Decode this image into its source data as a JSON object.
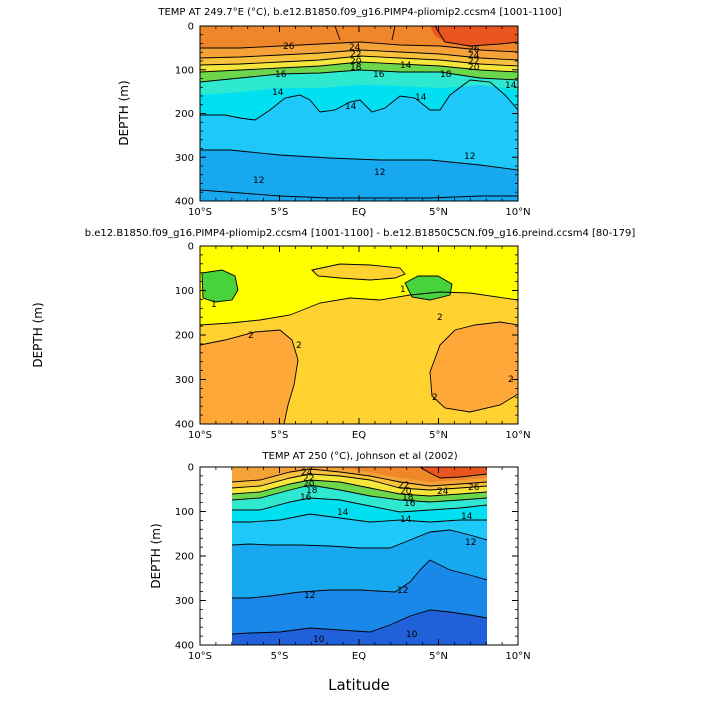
{
  "colors": {
    "t26": "#e8551e",
    "t24": "#f0862a",
    "t22": "#f5a238",
    "t20": "#f8c23c",
    "t18": "#f5e63c",
    "t16": "#6cd64c",
    "t15": "#2ee8d0",
    "t14": "#00e0f0",
    "t13": "#1ec8f8",
    "t12": "#18a8f0",
    "t11": "#1a88e8",
    "t10": "#2060d8",
    "d0": "#48d23c",
    "d1": "#ffff00",
    "d2": "#ffd230",
    "d3": "#ffa83a"
  },
  "chart_data": [
    {
      "type": "contour",
      "title": "TEMP AT 249.7°E (°C), b.e12.B1850.f09_g16.PIMP4-pliomip2.ccsm4 [1001-1100]",
      "xlabel": "",
      "ylabel": "DEPTH (m)",
      "xlim": [
        -10,
        10
      ],
      "ylim": [
        400,
        0
      ],
      "x_tick_labels": [
        "10°S",
        "5°S",
        "EQ",
        "5°N",
        "10°N"
      ],
      "y_tick_labels": [
        "0",
        "100",
        "200",
        "300",
        "400"
      ],
      "contour_labels": [
        "26",
        "24",
        "22",
        "20",
        "18",
        "16",
        "14",
        "14",
        "14",
        "14",
        "12",
        "12",
        "12",
        "26",
        "24",
        "22",
        "20",
        "18",
        "16",
        "14"
      ]
    },
    {
      "type": "contour",
      "title": "b.e12.B1850.f09_g16.PIMP4-pliomip2.ccsm4 [1001-1100] - b.e12.B1850C5CN.f09_g16.preind.ccsm4 [80-179]",
      "xlabel": "",
      "ylabel": "DEPTH (m)",
      "xlim": [
        -10,
        10
      ],
      "ylim": [
        400,
        0
      ],
      "x_tick_labels": [
        "10°S",
        "5°S",
        "EQ",
        "5°N",
        "10°N"
      ],
      "y_tick_labels": [
        "0",
        "100",
        "200",
        "300",
        "400"
      ],
      "contour_labels": [
        "1",
        "1",
        "2",
        "2",
        "2",
        "2",
        "2"
      ]
    },
    {
      "type": "contour",
      "title": "TEMP AT 250 (°C), Johnson et al (2002)",
      "xlabel": "Latitude",
      "ylabel": "DEPTH (m)",
      "xlim": [
        -10,
        10
      ],
      "ylim": [
        400,
        0
      ],
      "data_xrange": [
        -8,
        8
      ],
      "x_tick_labels": [
        "10°S",
        "5°S",
        "EQ",
        "5°N",
        "10°N"
      ],
      "y_tick_labels": [
        "0",
        "100",
        "200",
        "300",
        "400"
      ],
      "contour_labels": [
        "24",
        "22",
        "20",
        "18",
        "16",
        "14",
        "14",
        "14",
        "12",
        "12",
        "12",
        "10",
        "10",
        "22",
        "20",
        "18",
        "16",
        "24",
        "26"
      ]
    }
  ]
}
